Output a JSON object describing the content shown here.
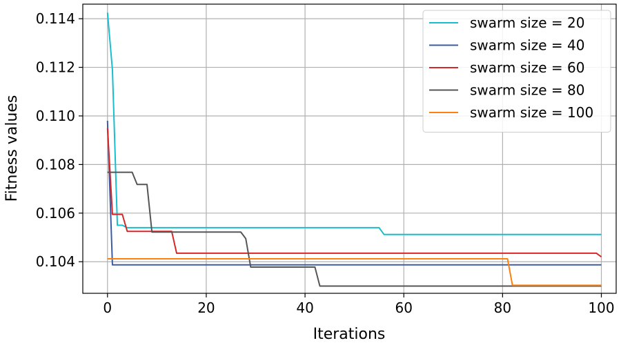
{
  "chart_data": {
    "type": "line",
    "xlabel": "Iterations",
    "ylabel": "Fitness values",
    "xlim": [
      -5,
      103
    ],
    "ylim": [
      0.1027,
      0.1146
    ],
    "xticks": [
      0,
      20,
      40,
      60,
      80,
      100
    ],
    "yticks": [
      0.104,
      0.106,
      0.108,
      0.11,
      0.112,
      0.114
    ],
    "ytick_labels": [
      "0.104",
      "0.106",
      "0.108",
      "0.110",
      "0.112",
      "0.114"
    ],
    "grid": true,
    "legend_position": "top-right",
    "series": [
      {
        "name": "swarm size = 20",
        "color": "#17becf",
        "points": [
          [
            0,
            0.11425
          ],
          [
            1,
            0.1119
          ],
          [
            2,
            0.1055
          ],
          [
            3,
            0.1055
          ],
          [
            4,
            0.1054
          ],
          [
            55,
            0.1054
          ],
          [
            56,
            0.10512
          ],
          [
            100,
            0.10512
          ]
        ]
      },
      {
        "name": "swarm size = 40",
        "color": "#3b5ba5",
        "points": [
          [
            0,
            0.1098
          ],
          [
            1,
            0.10387
          ],
          [
            100,
            0.10387
          ]
        ]
      },
      {
        "name": "swarm size = 60",
        "color": "#d62728",
        "points": [
          [
            0,
            0.1095
          ],
          [
            1,
            0.10595
          ],
          [
            3,
            0.10595
          ],
          [
            4,
            0.10525
          ],
          [
            13,
            0.10525
          ],
          [
            14,
            0.10435
          ],
          [
            99,
            0.10435
          ],
          [
            100,
            0.1042
          ]
        ]
      },
      {
        "name": "swarm size = 80",
        "color": "#555555",
        "points": [
          [
            0,
            0.10768
          ],
          [
            5,
            0.10768
          ],
          [
            6,
            0.10718
          ],
          [
            8,
            0.10718
          ],
          [
            9,
            0.10522
          ],
          [
            27,
            0.10522
          ],
          [
            28,
            0.10495
          ],
          [
            29,
            0.10378
          ],
          [
            42,
            0.10378
          ],
          [
            43,
            0.103
          ],
          [
            100,
            0.103
          ]
        ]
      },
      {
        "name": "swarm size = 100",
        "color": "#ff7f0e",
        "points": [
          [
            0,
            0.10412
          ],
          [
            81,
            0.10412
          ],
          [
            82,
            0.10303
          ],
          [
            100,
            0.10303
          ]
        ]
      }
    ]
  }
}
